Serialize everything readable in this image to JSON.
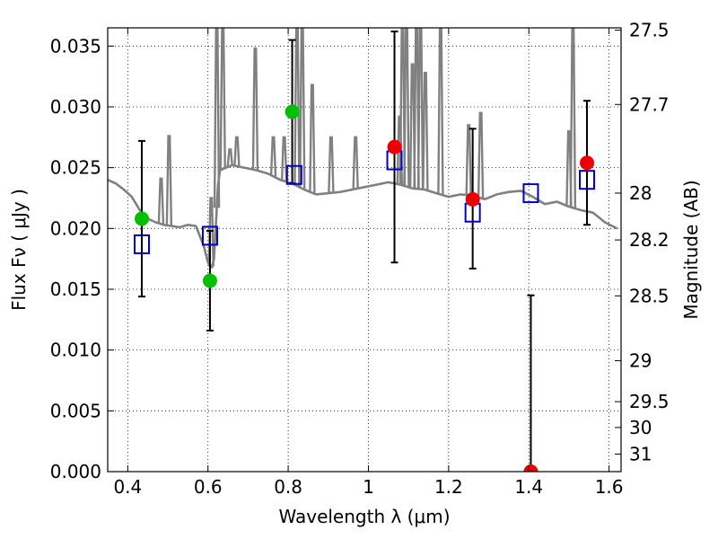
{
  "chart_data": {
    "type": "scatter",
    "xlabel": "Wavelength  λ (μm)",
    "ylabel": "Flux  Fν  ( μJy )",
    "ylabel_right": "Magnitude (AB)",
    "xlim": [
      0.35,
      1.63
    ],
    "ylim": [
      0.0,
      0.0365
    ],
    "x_ticks": [
      0.4,
      0.6,
      0.8,
      1.0,
      1.2,
      1.4,
      1.6
    ],
    "x_tick_labels": [
      "0.4",
      "0.6",
      "0.8",
      "1",
      "1.2",
      "1.4",
      "1.6"
    ],
    "y_ticks": [
      0.0,
      0.005,
      0.01,
      0.015,
      0.02,
      0.025,
      0.03,
      0.035
    ],
    "y_tick_labels": [
      "0.000",
      "0.005",
      "0.010",
      "0.015",
      "0.020",
      "0.025",
      "0.030",
      "0.035"
    ],
    "right_axis": {
      "type": "ab_magnitude",
      "ticks": [
        27.5,
        27.7,
        28,
        28.2,
        28.5,
        29,
        29.5,
        30,
        31
      ],
      "tick_labels": [
        "27.5",
        "27.7",
        "28",
        "28.2",
        "28.5",
        "29",
        "29.5",
        "30",
        "31"
      ]
    },
    "grid": true,
    "legend": "none",
    "colors": {
      "model": "#808080",
      "green_points": "#00c000",
      "red_points": "#ee0000",
      "model_boxes": "#0000cc",
      "errorbars": "#000000"
    },
    "series": [
      {
        "kind": "line",
        "color": "#808080",
        "x": [
          0.35,
          0.37,
          0.39,
          0.41,
          0.43,
          0.45,
          0.47,
          0.49,
          0.51,
          0.53,
          0.55,
          0.57,
          0.59,
          0.6,
          0.61,
          0.615,
          0.62,
          0.625,
          0.63,
          0.66,
          0.69,
          0.72,
          0.75,
          0.78,
          0.81,
          0.84,
          0.87,
          0.9,
          0.93,
          0.96,
          0.99,
          1.02,
          1.05,
          1.08,
          1.11,
          1.14,
          1.17,
          1.2,
          1.23,
          1.26,
          1.29,
          1.32,
          1.35,
          1.38,
          1.41,
          1.44,
          1.47,
          1.5,
          1.53,
          1.56,
          1.59,
          1.62
        ],
        "y": [
          0.024,
          0.0237,
          0.0232,
          0.0226,
          0.0215,
          0.0208,
          0.0205,
          0.0203,
          0.0202,
          0.0201,
          0.0203,
          0.0202,
          0.0185,
          0.0172,
          0.0168,
          0.0175,
          0.0205,
          0.0235,
          0.0248,
          0.0252,
          0.025,
          0.0248,
          0.0245,
          0.024,
          0.0237,
          0.0232,
          0.0228,
          0.0229,
          0.023,
          0.0232,
          0.0234,
          0.0236,
          0.0238,
          0.0236,
          0.0233,
          0.0232,
          0.0229,
          0.0226,
          0.0228,
          0.0227,
          0.0224,
          0.0228,
          0.023,
          0.0231,
          0.0226,
          0.022,
          0.0222,
          0.0218,
          0.0215,
          0.0213,
          0.0205,
          0.02
        ]
      },
      {
        "kind": "emission_lines",
        "color": "#808080",
        "lines": [
          {
            "x": 0.483,
            "peak": 0.0241
          },
          {
            "x": 0.503,
            "peak": 0.0276
          },
          {
            "x": 0.608,
            "peak": 0.0225
          },
          {
            "x": 0.622,
            "peak": 0.0365
          },
          {
            "x": 0.637,
            "peak": 0.0365
          },
          {
            "x": 0.655,
            "peak": 0.0265
          },
          {
            "x": 0.672,
            "peak": 0.0275
          },
          {
            "x": 0.718,
            "peak": 0.0348
          },
          {
            "x": 0.763,
            "peak": 0.0275
          },
          {
            "x": 0.79,
            "peak": 0.0275
          },
          {
            "x": 0.822,
            "peak": 0.0365
          },
          {
            "x": 0.835,
            "peak": 0.0365
          },
          {
            "x": 0.86,
            "peak": 0.0318
          },
          {
            "x": 0.907,
            "peak": 0.0275
          },
          {
            "x": 0.968,
            "peak": 0.0275
          },
          {
            "x": 1.078,
            "peak": 0.0292
          },
          {
            "x": 1.085,
            "peak": 0.0365
          },
          {
            "x": 1.095,
            "peak": 0.0365
          },
          {
            "x": 1.11,
            "peak": 0.0335
          },
          {
            "x": 1.12,
            "peak": 0.0365
          },
          {
            "x": 1.13,
            "peak": 0.0365
          },
          {
            "x": 1.142,
            "peak": 0.0328
          },
          {
            "x": 1.18,
            "peak": 0.0365
          },
          {
            "x": 1.25,
            "peak": 0.0285
          },
          {
            "x": 1.28,
            "peak": 0.0295
          },
          {
            "x": 1.5,
            "peak": 0.028
          },
          {
            "x": 1.51,
            "peak": 0.0365
          }
        ]
      },
      {
        "kind": "boxes",
        "color": "#0000cc",
        "x": [
          0.435,
          0.605,
          0.815,
          1.065,
          1.26,
          1.405,
          1.545
        ],
        "y": [
          0.0187,
          0.0194,
          0.0244,
          0.0256,
          0.0213,
          0.0229,
          0.024
        ]
      },
      {
        "kind": "points",
        "color": "#00c000",
        "x": [
          0.435,
          0.605,
          0.81
        ],
        "y": [
          0.0208,
          0.0157,
          0.0296
        ],
        "err_low": [
          0.0144,
          0.0116,
          0.0237
        ],
        "err_high": [
          0.0272,
          0.0198,
          0.0355
        ]
      },
      {
        "kind": "points",
        "color": "#ee0000",
        "x": [
          1.065,
          1.26,
          1.405,
          1.545
        ],
        "y": [
          0.0267,
          0.0224,
          0.0,
          0.0254
        ],
        "err_low": [
          0.0172,
          0.0167,
          0.0,
          0.0203
        ],
        "err_high": [
          0.0362,
          0.0282,
          0.0145,
          0.0305
        ]
      }
    ]
  }
}
